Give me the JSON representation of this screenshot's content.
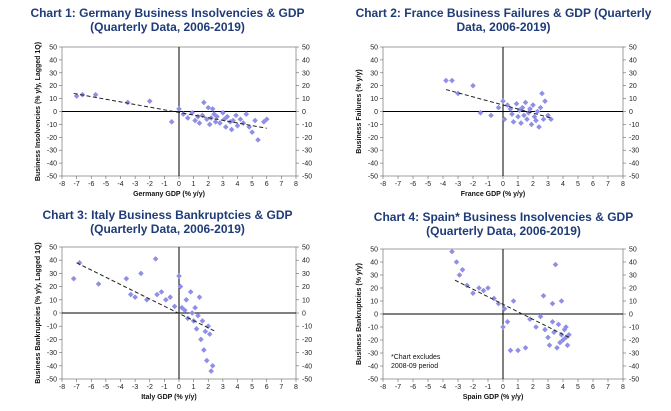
{
  "chart_data": [
    {
      "type": "scatter",
      "title": [
        "Chart 1: Germany Business Insolvencies & GDP",
        "(Quarterly Data, 2006-2019)"
      ],
      "xlabel": "Germany GDP (% y/y)",
      "ylabel": "Business Insolvencies (% y/y, Lagged 1Q)",
      "xlim": [
        -8,
        8
      ],
      "ylim": [
        -50,
        50
      ],
      "xticks": [
        "-8",
        "-7",
        "-6",
        "-5",
        "-4",
        "-3",
        "-2",
        "-1",
        "0",
        "1",
        "2",
        "3",
        "4",
        "5",
        "6",
        "7",
        "8"
      ],
      "yticks": [
        "50",
        "40",
        "30",
        "20",
        "10",
        "0",
        "-10",
        "-20",
        "-30",
        "-40",
        "-50"
      ],
      "marker_color": "#8f8fe6",
      "points": [
        [
          -7,
          12
        ],
        [
          -6.6,
          13
        ],
        [
          -5.7,
          13
        ],
        [
          -3.5,
          7
        ],
        [
          -2,
          8
        ],
        [
          -0.5,
          -8
        ],
        [
          0,
          2
        ],
        [
          0.3,
          -2
        ],
        [
          0.6,
          -5
        ],
        [
          0.9,
          -1
        ],
        [
          1.1,
          -7
        ],
        [
          1.3,
          -4
        ],
        [
          1.4,
          -9
        ],
        [
          1.6,
          -3
        ],
        [
          1.7,
          7
        ],
        [
          1.9,
          -6
        ],
        [
          2,
          3
        ],
        [
          2.1,
          -10
        ],
        [
          2.2,
          -5
        ],
        [
          2.3,
          2
        ],
        [
          2.4,
          -2
        ],
        [
          2.5,
          -8
        ],
        [
          2.6,
          -4
        ],
        [
          2.8,
          -9
        ],
        [
          3,
          -1
        ],
        [
          3.1,
          -6
        ],
        [
          3.2,
          -12
        ],
        [
          3.3,
          -4
        ],
        [
          3.5,
          -8
        ],
        [
          3.6,
          -14
        ],
        [
          3.7,
          -7
        ],
        [
          3.9,
          -3
        ],
        [
          4,
          -11
        ],
        [
          4.2,
          -6
        ],
        [
          4.4,
          -9
        ],
        [
          4.6,
          -2
        ],
        [
          4.8,
          -12
        ],
        [
          5,
          -16
        ],
        [
          5.2,
          -7
        ],
        [
          5.4,
          -22
        ],
        [
          5.8,
          -8
        ],
        [
          6,
          -6
        ]
      ],
      "trend": [
        [
          -7.2,
          14
        ],
        [
          6,
          -13
        ]
      ]
    },
    {
      "type": "scatter",
      "title": [
        "Chart 2: France Business Failures & GDP (Quarterly",
        "Data, 2006-2019)"
      ],
      "xlabel": "France GDP (% y/y)",
      "ylabel": "Business Failures (% y/y)",
      "xlim": [
        -8,
        8
      ],
      "ylim": [
        -50,
        50
      ],
      "xticks": [
        "-8",
        "-7",
        "-6",
        "-5",
        "-4",
        "-3",
        "-2",
        "-1",
        "0",
        "1",
        "2",
        "3",
        "4",
        "5",
        "6",
        "7",
        "8"
      ],
      "yticks": [
        "50",
        "40",
        "30",
        "20",
        "10",
        "0",
        "-10",
        "-20",
        "-30",
        "-40",
        "-50"
      ],
      "marker_color": "#8f8fe6",
      "points": [
        [
          -3.8,
          24
        ],
        [
          -3.4,
          24
        ],
        [
          -3,
          14
        ],
        [
          -2,
          20
        ],
        [
          -1.5,
          -1
        ],
        [
          -0.8,
          -3
        ],
        [
          -0.3,
          3
        ],
        [
          0,
          8
        ],
        [
          0.1,
          -6
        ],
        [
          0.3,
          5
        ],
        [
          0.5,
          2
        ],
        [
          0.6,
          -2
        ],
        [
          0.7,
          -8
        ],
        [
          0.9,
          6
        ],
        [
          1,
          -4
        ],
        [
          1.1,
          1
        ],
        [
          1.2,
          -9
        ],
        [
          1.3,
          3
        ],
        [
          1.4,
          -3
        ],
        [
          1.5,
          7
        ],
        [
          1.6,
          -6
        ],
        [
          1.7,
          -1
        ],
        [
          1.8,
          2
        ],
        [
          1.9,
          -10
        ],
        [
          2,
          5
        ],
        [
          2.1,
          -4
        ],
        [
          2.2,
          -7
        ],
        [
          2.3,
          0
        ],
        [
          2.4,
          -12
        ],
        [
          2.5,
          3
        ],
        [
          2.6,
          14
        ],
        [
          2.7,
          -6
        ],
        [
          2.8,
          8
        ],
        [
          3,
          -3
        ],
        [
          3.2,
          -6
        ]
      ],
      "trend": [
        [
          -3.8,
          17
        ],
        [
          3.2,
          -5
        ]
      ]
    },
    {
      "type": "scatter",
      "title": [
        "Chart 3: Italy Business Bankruptcies & GDP",
        "(Quarterly Data, 2006-2019)"
      ],
      "xlabel": "Italy GDP (% y/y)",
      "ylabel": "Business Bankruptcies (% y/y, Lagged 1Q)",
      "xlim": [
        -8,
        8
      ],
      "ylim": [
        -50,
        50
      ],
      "xticks": [
        "-8",
        "-7",
        "-6",
        "-5",
        "-4",
        "-3",
        "-2",
        "-1",
        "0",
        "1",
        "2",
        "3",
        "4",
        "5",
        "6",
        "7",
        "8"
      ],
      "yticks": [
        "50",
        "40",
        "30",
        "20",
        "10",
        "0",
        "-10",
        "-20",
        "-30",
        "-40",
        "-50"
      ],
      "marker_color": "#8f8fe6",
      "points": [
        [
          -7.2,
          26
        ],
        [
          -6.8,
          38
        ],
        [
          -5.5,
          22
        ],
        [
          -3.6,
          26
        ],
        [
          -3.3,
          14
        ],
        [
          -3,
          12
        ],
        [
          -2.6,
          30
        ],
        [
          -2.2,
          10
        ],
        [
          -1.6,
          41
        ],
        [
          -1.5,
          14
        ],
        [
          -1.2,
          16
        ],
        [
          -0.9,
          10
        ],
        [
          -0.6,
          12
        ],
        [
          -0.3,
          5
        ],
        [
          0,
          28
        ],
        [
          0.1,
          20
        ],
        [
          0.2,
          4
        ],
        [
          0.4,
          2
        ],
        [
          0.5,
          10
        ],
        [
          0.6,
          -4
        ],
        [
          0.8,
          16
        ],
        [
          0.9,
          0
        ],
        [
          1,
          -6
        ],
        [
          1.1,
          4
        ],
        [
          1.2,
          -12
        ],
        [
          1.3,
          -2
        ],
        [
          1.4,
          12
        ],
        [
          1.5,
          -20
        ],
        [
          1.6,
          -6
        ],
        [
          1.7,
          -28
        ],
        [
          1.8,
          -14
        ],
        [
          1.9,
          -36
        ],
        [
          2,
          -10
        ],
        [
          2.1,
          -16
        ],
        [
          2.2,
          -44
        ],
        [
          2.3,
          -40
        ]
      ],
      "trend": [
        [
          -7,
          38
        ],
        [
          2.5,
          -14
        ]
      ]
    },
    {
      "type": "scatter",
      "title": [
        "Chart 4: Spain* Business Insolvencies & GDP",
        "(Quarterly Data, 2006-2019)"
      ],
      "xlabel": "Spain GDP (% y/y)",
      "ylabel": "Business Bankruptcies (% y/y)",
      "xlim": [
        -8,
        8
      ],
      "ylim": [
        -50,
        50
      ],
      "xticks": [
        "-8",
        "-7",
        "-6",
        "-5",
        "-4",
        "-3",
        "-2",
        "-1",
        "0",
        "1",
        "2",
        "3",
        "4",
        "5",
        "6",
        "7",
        "8"
      ],
      "yticks": [
        "50",
        "40",
        "30",
        "20",
        "10",
        "0",
        "-10",
        "-20",
        "-30",
        "-40",
        "-50"
      ],
      "marker_color": "#8f8fe6",
      "annotation": [
        "*Chart excludes",
        "2008-09 period"
      ],
      "points": [
        [
          -3.4,
          48
        ],
        [
          -3.1,
          40
        ],
        [
          -2.9,
          30
        ],
        [
          -2.7,
          34
        ],
        [
          -2.4,
          22
        ],
        [
          -2,
          16
        ],
        [
          -1.6,
          20
        ],
        [
          -1.3,
          18
        ],
        [
          -1,
          20
        ],
        [
          -0.6,
          12
        ],
        [
          -0.3,
          8
        ],
        [
          0,
          -10
        ],
        [
          0.1,
          4
        ],
        [
          0.3,
          -6
        ],
        [
          0.5,
          -28
        ],
        [
          0.7,
          10
        ],
        [
          1,
          -28
        ],
        [
          1.5,
          -26
        ],
        [
          1.8,
          -4
        ],
        [
          2.2,
          -10
        ],
        [
          2.5,
          -2
        ],
        [
          2.7,
          14
        ],
        [
          2.8,
          -12
        ],
        [
          3,
          -18
        ],
        [
          3.1,
          -24
        ],
        [
          3.3,
          -6
        ],
        [
          3.4,
          -14
        ],
        [
          3.6,
          -26
        ],
        [
          3.7,
          -8
        ],
        [
          3.8,
          -22
        ],
        [
          3.9,
          -16
        ],
        [
          4,
          -20
        ],
        [
          4.1,
          -12
        ],
        [
          4.2,
          -18
        ],
        [
          4.3,
          -24
        ],
        [
          4.4,
          -16
        ],
        [
          3.5,
          38
        ],
        [
          3.9,
          10
        ],
        [
          4.2,
          -10
        ],
        [
          3.3,
          8
        ]
      ],
      "trend": [
        [
          -3.2,
          26
        ],
        [
          4.4,
          -18
        ]
      ]
    }
  ]
}
